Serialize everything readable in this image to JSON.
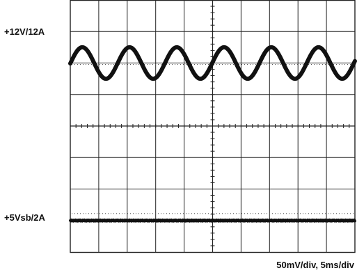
{
  "chart_data": {
    "type": "line",
    "grid": true,
    "divisions": {
      "x": 10,
      "y": 8
    },
    "scale_text": "50mV/div,  5ms/div",
    "series": [
      {
        "name": "+12V/12A",
        "offset_div": 2.0,
        "ripple_mv_pp": 50,
        "ripple_period_ms": 8.3
      },
      {
        "name": "+5Vsb/2A",
        "offset_div": -3.0,
        "ripple_mv_pp": 5,
        "ripple_period_ms": 0
      }
    ],
    "colors": {
      "trace": "#111111",
      "grid": "#222222",
      "background": "#ffffff"
    }
  }
}
